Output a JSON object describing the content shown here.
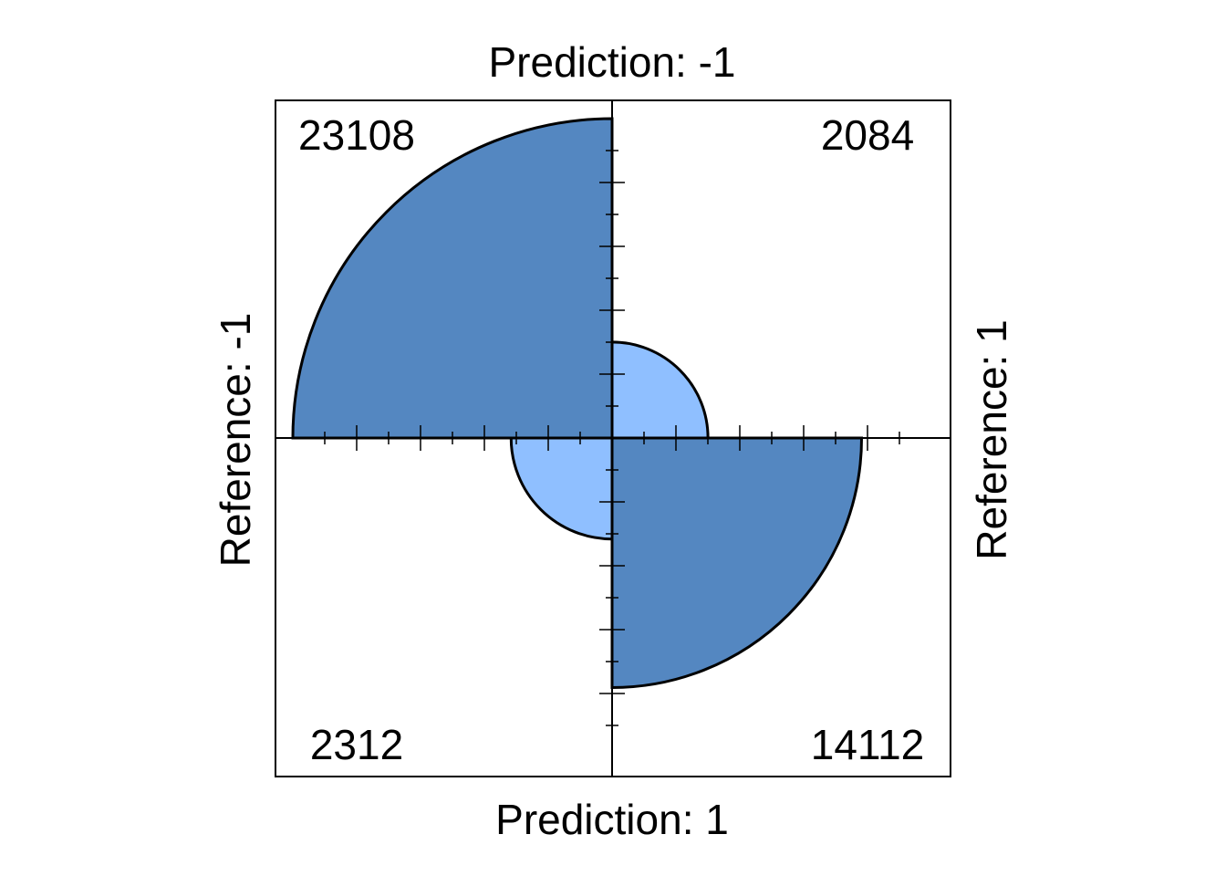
{
  "chart_data": {
    "type": "fourfold",
    "title_top": "Prediction: -1",
    "title_bottom": "Prediction: 1",
    "label_left": "Reference: -1",
    "label_right": "Reference: 1",
    "cells": [
      {
        "quadrant": "top-left",
        "prediction": "-1",
        "reference": "-1",
        "count": 23108,
        "label": "23108",
        "color": "#5487C1"
      },
      {
        "quadrant": "top-right",
        "prediction": "-1",
        "reference": "1",
        "count": 2084,
        "label": "2084",
        "color": "#8FBFFF"
      },
      {
        "quadrant": "bottom-left",
        "prediction": "1",
        "reference": "-1",
        "count": 2312,
        "label": "2312",
        "color": "#8FBFFF"
      },
      {
        "quadrant": "bottom-right",
        "prediction": "1",
        "reference": "1",
        "count": 14112,
        "label": "14112",
        "color": "#5487C1"
      }
    ],
    "colors": {
      "correct": "#5487C1",
      "incorrect": "#8FBFFF",
      "outline": "#000000"
    }
  }
}
